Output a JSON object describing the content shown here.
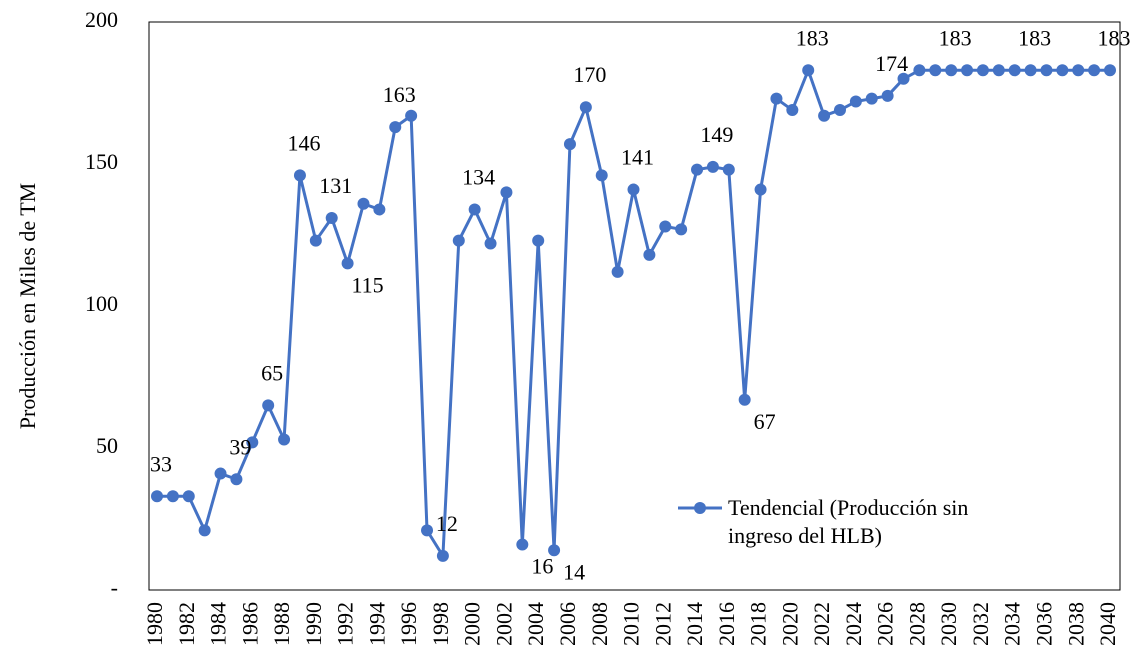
{
  "chart_data": {
    "type": "line",
    "y_label": "Producción en Miles de TM",
    "categories": [
      "1980",
      null,
      "1982",
      null,
      "1984",
      null,
      "1986",
      null,
      "1988",
      null,
      "1990",
      null,
      "1992",
      null,
      "1994",
      null,
      "1996",
      null,
      "1998",
      null,
      "2000",
      null,
      "2002",
      null,
      "2004",
      null,
      "2006",
      null,
      "2008",
      null,
      "2010",
      null,
      "2012",
      null,
      "2014",
      null,
      "2016",
      null,
      "2018",
      null,
      "2020",
      null,
      "2022",
      null,
      "2024",
      null,
      "2026",
      null,
      "2028",
      null,
      "2030",
      null,
      "2032",
      null,
      "2034",
      null,
      "2036",
      null,
      "2038",
      null,
      "2040"
    ],
    "series": [
      {
        "name": "Tendencial (Producción sin ingreso del HLB)",
        "color": "#4472c4",
        "values": [
          33,
          33,
          33,
          21,
          41,
          39,
          52,
          65,
          53,
          146,
          123,
          131,
          115,
          136,
          134,
          163,
          167,
          21,
          12,
          123,
          134,
          122,
          140,
          16,
          123,
          14,
          157,
          170,
          146,
          112,
          141,
          118,
          128,
          127,
          148,
          149,
          148,
          67,
          141,
          173,
          169,
          183,
          167,
          169,
          172,
          173,
          174,
          180,
          183,
          183,
          183,
          183,
          183,
          183,
          183,
          183,
          183,
          183,
          183,
          183,
          183
        ],
        "value_labels": [
          "33",
          null,
          null,
          null,
          null,
          "39",
          null,
          "65",
          null,
          "146",
          null,
          "131",
          "115",
          null,
          null,
          "163",
          null,
          null,
          "12",
          null,
          "134",
          null,
          null,
          "16",
          null,
          "14",
          null,
          "170",
          null,
          null,
          "141",
          null,
          null,
          null,
          null,
          "149",
          null,
          "67",
          null,
          null,
          null,
          "183",
          null,
          null,
          null,
          null,
          "174",
          null,
          null,
          null,
          "183",
          null,
          null,
          null,
          null,
          "183",
          null,
          null,
          null,
          null,
          "183"
        ]
      }
    ],
    "ylim": [
      0,
      200
    ],
    "yticks": [
      {
        "value": 0,
        "label": "-"
      },
      50,
      100,
      150,
      200
    ],
    "grid": false
  }
}
